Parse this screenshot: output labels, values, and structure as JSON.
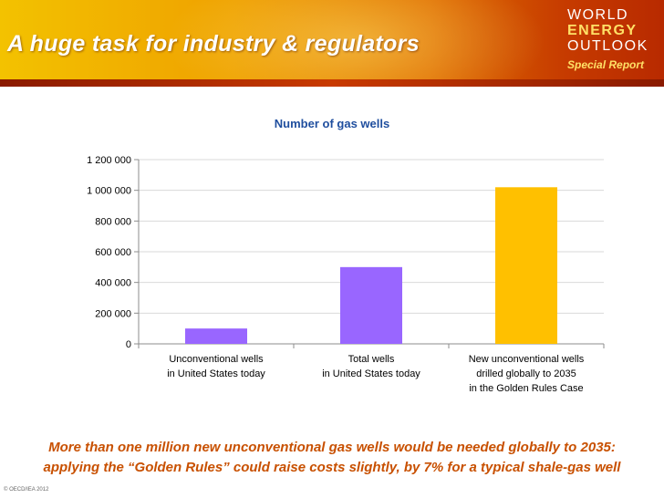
{
  "slide": {
    "title": "A huge task for industry & regulators",
    "logo": {
      "line1": "WORLD",
      "line2": "ENERGY",
      "line3": "OUTLOOK",
      "line4": "Special Report"
    },
    "caption_line1": "More than one million new unconventional gas wells would be needed globally to 2035:",
    "caption_line2": "applying the “Golden Rules” could raise costs slightly, by 7% for a typical shale-gas well",
    "copyright": "© OECD/IEA 2012"
  },
  "chart_data": {
    "type": "bar",
    "title": "Number of gas wells",
    "xlabel": "",
    "ylabel": "",
    "ylim": [
      0,
      1200000
    ],
    "yticks": [
      0,
      200000,
      400000,
      600000,
      800000,
      1000000,
      1200000
    ],
    "ytick_labels": [
      "0",
      "200 000",
      "400 000",
      "600 000",
      "800 000",
      "1 000 000",
      "1 200 000"
    ],
    "grid": true,
    "legend": "none",
    "categories": [
      [
        "Unconventional wells",
        "in United States today"
      ],
      [
        "Total wells",
        "in United States today"
      ],
      [
        "New unconventional wells",
        "drilled globally to 2035",
        "in the Golden Rules Case"
      ]
    ],
    "values": [
      100000,
      500000,
      1020000
    ],
    "colors": [
      "#9966ff",
      "#9966ff",
      "#ffc000"
    ]
  },
  "colors": {
    "title_text": "#ffffff",
    "chart_title": "#1f4e9e",
    "caption": "#c85000"
  }
}
